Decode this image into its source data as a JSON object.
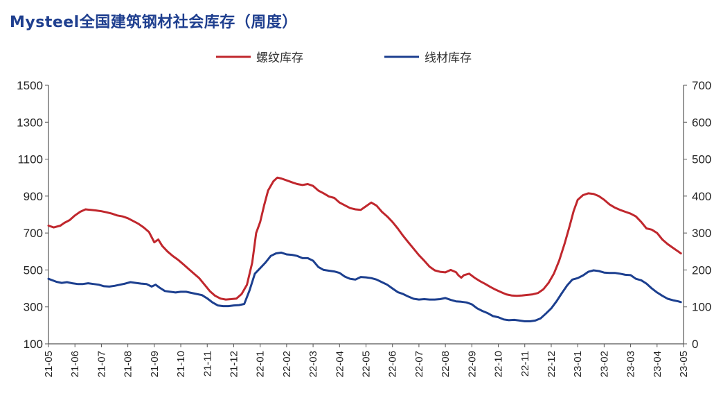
{
  "chart_data": {
    "type": "line",
    "title": "Mysteel全国建筑钢材社会库存（周度）",
    "x": [
      "21-05",
      "21-06",
      "21-07",
      "21-08",
      "21-09",
      "21-10",
      "21-11",
      "21-12",
      "22-01",
      "22-02",
      "22-03",
      "22-04",
      "22-05",
      "22-06",
      "22-07",
      "22-08",
      "22-09",
      "22-10",
      "22-11",
      "22-12",
      "23-01",
      "23-02",
      "23-03",
      "23-04",
      "23-05"
    ],
    "ylim_left": [
      100,
      1500
    ],
    "yticks_left": [
      "1500",
      "1300",
      "1100",
      "900",
      "700",
      "500",
      "300",
      "100"
    ],
    "ylim_right": [
      0,
      700
    ],
    "yticks_right": [
      "700",
      "600",
      "500",
      "400",
      "300",
      "200",
      "100",
      "0"
    ],
    "series": [
      {
        "name": "螺纹库存",
        "axis": "left",
        "color": "#c0272d",
        "points": [
          [
            0,
            740
          ],
          [
            0.2,
            730
          ],
          [
            0.45,
            740
          ],
          [
            0.6,
            755
          ],
          [
            0.8,
            770
          ],
          [
            1.0,
            795
          ],
          [
            1.2,
            815
          ],
          [
            1.4,
            828
          ],
          [
            1.6,
            825
          ],
          [
            1.8,
            822
          ],
          [
            2.0,
            818
          ],
          [
            2.2,
            812
          ],
          [
            2.4,
            805
          ],
          [
            2.6,
            795
          ],
          [
            2.8,
            790
          ],
          [
            3.0,
            780
          ],
          [
            3.2,
            765
          ],
          [
            3.4,
            750
          ],
          [
            3.6,
            730
          ],
          [
            3.8,
            705
          ],
          [
            4.0,
            650
          ],
          [
            4.15,
            665
          ],
          [
            4.3,
            630
          ],
          [
            4.5,
            600
          ],
          [
            4.7,
            575
          ],
          [
            4.9,
            555
          ],
          [
            5.1,
            530
          ],
          [
            5.3,
            505
          ],
          [
            5.5,
            480
          ],
          [
            5.7,
            455
          ],
          [
            5.9,
            420
          ],
          [
            6.1,
            385
          ],
          [
            6.3,
            360
          ],
          [
            6.5,
            345
          ],
          [
            6.7,
            340
          ],
          [
            6.9,
            342
          ],
          [
            7.1,
            345
          ],
          [
            7.3,
            370
          ],
          [
            7.5,
            420
          ],
          [
            7.7,
            540
          ],
          [
            7.85,
            700
          ],
          [
            8.0,
            760
          ],
          [
            8.15,
            850
          ],
          [
            8.3,
            930
          ],
          [
            8.5,
            980
          ],
          [
            8.65,
            1000
          ],
          [
            8.8,
            995
          ],
          [
            9.0,
            985
          ],
          [
            9.2,
            975
          ],
          [
            9.4,
            965
          ],
          [
            9.6,
            960
          ],
          [
            9.8,
            965
          ],
          [
            10.0,
            955
          ],
          [
            10.2,
            930
          ],
          [
            10.4,
            915
          ],
          [
            10.6,
            898
          ],
          [
            10.8,
            890
          ],
          [
            11.0,
            865
          ],
          [
            11.2,
            850
          ],
          [
            11.4,
            835
          ],
          [
            11.6,
            828
          ],
          [
            11.8,
            825
          ],
          [
            12.0,
            845
          ],
          [
            12.2,
            865
          ],
          [
            12.4,
            848
          ],
          [
            12.6,
            815
          ],
          [
            12.8,
            790
          ],
          [
            13.0,
            760
          ],
          [
            13.2,
            725
          ],
          [
            13.4,
            685
          ],
          [
            13.6,
            650
          ],
          [
            13.8,
            615
          ],
          [
            14.0,
            580
          ],
          [
            14.2,
            550
          ],
          [
            14.4,
            518
          ],
          [
            14.6,
            498
          ],
          [
            14.8,
            490
          ],
          [
            15.0,
            487
          ],
          [
            15.2,
            500
          ],
          [
            15.4,
            488
          ],
          [
            15.5,
            470
          ],
          [
            15.6,
            458
          ],
          [
            15.7,
            472
          ],
          [
            15.9,
            480
          ],
          [
            16.1,
            458
          ],
          [
            16.3,
            440
          ],
          [
            16.5,
            425
          ],
          [
            16.7,
            408
          ],
          [
            16.9,
            393
          ],
          [
            17.1,
            380
          ],
          [
            17.3,
            368
          ],
          [
            17.5,
            362
          ],
          [
            17.7,
            360
          ],
          [
            17.9,
            362
          ],
          [
            18.1,
            365
          ],
          [
            18.3,
            368
          ],
          [
            18.5,
            375
          ],
          [
            18.7,
            395
          ],
          [
            18.9,
            430
          ],
          [
            19.1,
            480
          ],
          [
            19.3,
            550
          ],
          [
            19.5,
            640
          ],
          [
            19.7,
            740
          ],
          [
            19.85,
            820
          ],
          [
            20.0,
            880
          ],
          [
            20.2,
            905
          ],
          [
            20.4,
            915
          ],
          [
            20.6,
            912
          ],
          [
            20.8,
            900
          ],
          [
            21.0,
            880
          ],
          [
            21.2,
            855
          ],
          [
            21.4,
            838
          ],
          [
            21.6,
            825
          ],
          [
            21.8,
            815
          ],
          [
            22.0,
            805
          ],
          [
            22.2,
            790
          ],
          [
            22.4,
            760
          ],
          [
            22.6,
            725
          ],
          [
            22.8,
            718
          ],
          [
            23.0,
            700
          ],
          [
            23.2,
            665
          ],
          [
            23.4,
            640
          ],
          [
            23.6,
            620
          ],
          [
            23.8,
            600
          ],
          [
            23.9,
            590
          ]
        ]
      },
      {
        "name": "线材库存",
        "axis": "right",
        "color": "#1c3f8f",
        "points": [
          [
            0,
            176
          ],
          [
            0.3,
            168
          ],
          [
            0.5,
            165
          ],
          [
            0.7,
            167
          ],
          [
            0.9,
            164
          ],
          [
            1.1,
            162
          ],
          [
            1.3,
            162
          ],
          [
            1.5,
            164
          ],
          [
            1.7,
            162
          ],
          [
            1.9,
            160
          ],
          [
            2.1,
            156
          ],
          [
            2.3,
            155
          ],
          [
            2.5,
            157
          ],
          [
            2.7,
            160
          ],
          [
            2.9,
            163
          ],
          [
            3.1,
            167
          ],
          [
            3.3,
            165
          ],
          [
            3.5,
            163
          ],
          [
            3.7,
            162
          ],
          [
            3.9,
            155
          ],
          [
            4.05,
            160
          ],
          [
            4.2,
            152
          ],
          [
            4.4,
            143
          ],
          [
            4.6,
            141
          ],
          [
            4.8,
            139
          ],
          [
            5.0,
            141
          ],
          [
            5.2,
            141
          ],
          [
            5.4,
            138
          ],
          [
            5.6,
            135
          ],
          [
            5.8,
            132
          ],
          [
            6.0,
            123
          ],
          [
            6.2,
            112
          ],
          [
            6.4,
            104
          ],
          [
            6.6,
            102
          ],
          [
            6.8,
            102
          ],
          [
            7.0,
            104
          ],
          [
            7.2,
            105
          ],
          [
            7.4,
            108
          ],
          [
            7.6,
            145
          ],
          [
            7.8,
            190
          ],
          [
            8.0,
            205
          ],
          [
            8.2,
            220
          ],
          [
            8.4,
            238
          ],
          [
            8.6,
            245
          ],
          [
            8.8,
            247
          ],
          [
            9.0,
            242
          ],
          [
            9.2,
            241
          ],
          [
            9.4,
            238
          ],
          [
            9.6,
            232
          ],
          [
            9.8,
            232
          ],
          [
            10.0,
            225
          ],
          [
            10.2,
            208
          ],
          [
            10.4,
            200
          ],
          [
            10.6,
            198
          ],
          [
            10.8,
            196
          ],
          [
            11.0,
            192
          ],
          [
            11.2,
            182
          ],
          [
            11.4,
            176
          ],
          [
            11.6,
            174
          ],
          [
            11.8,
            181
          ],
          [
            12.0,
            180
          ],
          [
            12.2,
            178
          ],
          [
            12.4,
            174
          ],
          [
            12.6,
            167
          ],
          [
            12.8,
            160
          ],
          [
            13.0,
            150
          ],
          [
            13.2,
            140
          ],
          [
            13.4,
            135
          ],
          [
            13.6,
            128
          ],
          [
            13.8,
            122
          ],
          [
            14.0,
            120
          ],
          [
            14.2,
            121
          ],
          [
            14.4,
            120
          ],
          [
            14.6,
            120
          ],
          [
            14.8,
            121
          ],
          [
            15.0,
            124
          ],
          [
            15.2,
            119
          ],
          [
            15.4,
            115
          ],
          [
            15.6,
            114
          ],
          [
            15.8,
            112
          ],
          [
            16.0,
            107
          ],
          [
            16.2,
            96
          ],
          [
            16.4,
            89
          ],
          [
            16.6,
            83
          ],
          [
            16.8,
            75
          ],
          [
            17.0,
            72
          ],
          [
            17.2,
            66
          ],
          [
            17.4,
            64
          ],
          [
            17.6,
            65
          ],
          [
            17.8,
            63
          ],
          [
            18.0,
            61
          ],
          [
            18.2,
            61
          ],
          [
            18.4,
            63
          ],
          [
            18.6,
            69
          ],
          [
            18.8,
            82
          ],
          [
            19.0,
            96
          ],
          [
            19.2,
            115
          ],
          [
            19.4,
            137
          ],
          [
            19.6,
            158
          ],
          [
            19.8,
            174
          ],
          [
            20.0,
            178
          ],
          [
            20.2,
            185
          ],
          [
            20.4,
            195
          ],
          [
            20.6,
            199
          ],
          [
            20.8,
            197
          ],
          [
            21.0,
            193
          ],
          [
            21.2,
            192
          ],
          [
            21.4,
            192
          ],
          [
            21.6,
            190
          ],
          [
            21.8,
            187
          ],
          [
            22.0,
            186
          ],
          [
            22.2,
            176
          ],
          [
            22.4,
            172
          ],
          [
            22.6,
            163
          ],
          [
            22.8,
            150
          ],
          [
            23.0,
            139
          ],
          [
            23.2,
            130
          ],
          [
            23.4,
            122
          ],
          [
            23.6,
            118
          ],
          [
            23.8,
            115
          ],
          [
            23.9,
            113
          ]
        ]
      }
    ],
    "legend_position": "top-center",
    "grid": false
  }
}
